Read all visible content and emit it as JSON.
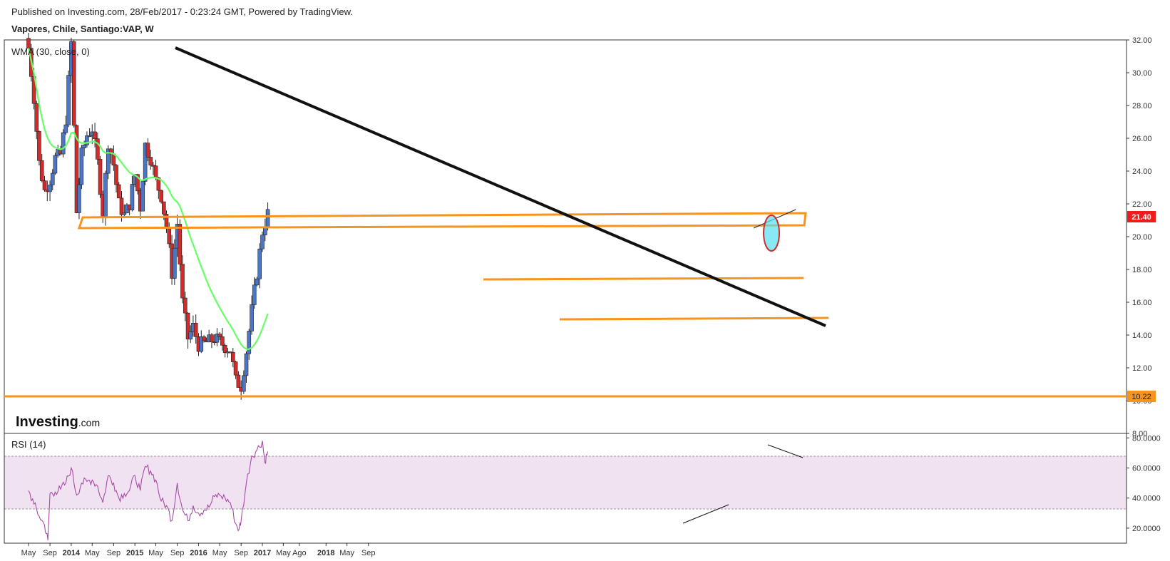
{
  "header": {
    "published": "Published on Investing.com, 28/Feb/2017 - 0:23:24 GMT, Powered by TradingView.",
    "instrument": "Vapores, Chile, Santiago:VAP, W"
  },
  "brand": {
    "logo_main": "Investing",
    "logo_suffix": ".com"
  },
  "colors": {
    "up_candle": "#4a76c8",
    "down_candle": "#d12b2b",
    "wma": "#66ff66",
    "trendline": "#111111",
    "support": "#f7941d",
    "rsi_line": "#a64ca6",
    "rsi_band": "#f1e2f1",
    "price_tag": "#ee1c1c"
  },
  "chart_data": [
    {
      "type": "candlestick",
      "title": "Vapores, Chile, Santiago:VAP, W",
      "indicator": "WMA (30, close, 0)",
      "x_ticks": [
        "May",
        "Sep",
        "2014",
        "May",
        "Sep",
        "2015",
        "May",
        "Sep",
        "2016",
        "May",
        "Sep",
        "2017",
        "May",
        "Ago",
        "2018",
        "May",
        "Sep"
      ],
      "y_ticks": [
        "32.00",
        "30.00",
        "28.00",
        "26.00",
        "24.00",
        "22.00",
        "20.00",
        "18.00",
        "16.00",
        "14.00",
        "12.00",
        "10.00",
        "8.00"
      ],
      "ylim": [
        8,
        32
      ],
      "last_price": "21.40",
      "level_label": "10.22",
      "close_series": [
        {
          "date": "2013-05",
          "close": 31.5
        },
        {
          "date": "2013-06",
          "close": 28.5
        },
        {
          "date": "2013-07",
          "close": 24.5
        },
        {
          "date": "2013-08",
          "close": 22.8
        },
        {
          "date": "2013-09",
          "close": 23.5
        },
        {
          "date": "2013-10",
          "close": 24.8
        },
        {
          "date": "2013-11",
          "close": 25.0
        },
        {
          "date": "2013-12",
          "close": 27.2
        },
        {
          "date": "2014-01",
          "close": 31.8
        },
        {
          "date": "2014-02",
          "close": 21.5
        },
        {
          "date": "2014-03",
          "close": 25.0
        },
        {
          "date": "2014-04",
          "close": 26.2
        },
        {
          "date": "2014-05",
          "close": 26.6
        },
        {
          "date": "2014-06",
          "close": 24.5
        },
        {
          "date": "2014-07",
          "close": 21.5
        },
        {
          "date": "2014-08",
          "close": 25.8
        },
        {
          "date": "2014-09",
          "close": 24.4
        },
        {
          "date": "2014-10",
          "close": 22.0
        },
        {
          "date": "2014-11",
          "close": 21.3
        },
        {
          "date": "2014-12",
          "close": 22.0
        },
        {
          "date": "2015-01",
          "close": 23.8
        },
        {
          "date": "2015-02",
          "close": 21.8
        },
        {
          "date": "2015-03",
          "close": 25.6
        },
        {
          "date": "2015-04",
          "close": 24.8
        },
        {
          "date": "2015-05",
          "close": 23.4
        },
        {
          "date": "2015-06",
          "close": 22.5
        },
        {
          "date": "2015-07",
          "close": 20.6
        },
        {
          "date": "2015-08",
          "close": 17.8
        },
        {
          "date": "2015-09",
          "close": 20.8
        },
        {
          "date": "2015-10",
          "close": 16.0
        },
        {
          "date": "2015-11",
          "close": 13.8
        },
        {
          "date": "2015-12",
          "close": 14.5
        },
        {
          "date": "2016-01",
          "close": 13.4
        },
        {
          "date": "2016-02",
          "close": 13.5
        },
        {
          "date": "2016-03",
          "close": 13.6
        },
        {
          "date": "2016-04",
          "close": 13.8
        },
        {
          "date": "2016-05",
          "close": 13.6
        },
        {
          "date": "2016-06",
          "close": 13.3
        },
        {
          "date": "2016-07",
          "close": 13.1
        },
        {
          "date": "2016-08",
          "close": 11.2
        },
        {
          "date": "2016-09",
          "close": 10.9
        },
        {
          "date": "2016-10",
          "close": 13.0
        },
        {
          "date": "2016-11",
          "close": 15.5
        },
        {
          "date": "2016-12",
          "close": 17.8
        },
        {
          "date": "2017-01",
          "close": 20.3
        },
        {
          "date": "2017-02",
          "close": 21.4
        }
      ]
    },
    {
      "type": "line",
      "title": "RSI (14)",
      "y_ticks": [
        "80.0000",
        "60.0000",
        "40.0000",
        "20.0000"
      ],
      "ylim": [
        10,
        83
      ],
      "bands": [
        30,
        70
      ],
      "rsi_series": [
        {
          "date": "2013-05",
          "rsi": 45
        },
        {
          "date": "2013-06",
          "rsi": 36
        },
        {
          "date": "2013-07",
          "rsi": 28
        },
        {
          "date": "2013-08",
          "rsi": 22
        },
        {
          "date": "2013-08-20",
          "rsi": 12
        },
        {
          "date": "2013-09",
          "rsi": 43
        },
        {
          "date": "2013-10",
          "rsi": 44
        },
        {
          "date": "2013-11",
          "rsi": 46
        },
        {
          "date": "2013-12",
          "rsi": 50
        },
        {
          "date": "2014-01",
          "rsi": 60
        },
        {
          "date": "2014-02",
          "rsi": 42
        },
        {
          "date": "2014-03",
          "rsi": 50
        },
        {
          "date": "2014-04",
          "rsi": 51
        },
        {
          "date": "2014-05",
          "rsi": 52
        },
        {
          "date": "2014-06",
          "rsi": 48
        },
        {
          "date": "2014-07",
          "rsi": 37
        },
        {
          "date": "2014-08",
          "rsi": 55
        },
        {
          "date": "2014-09",
          "rsi": 50
        },
        {
          "date": "2014-10",
          "rsi": 40
        },
        {
          "date": "2014-11",
          "rsi": 43
        },
        {
          "date": "2014-12",
          "rsi": 45
        },
        {
          "date": "2015-01",
          "rsi": 55
        },
        {
          "date": "2015-02",
          "rsi": 45
        },
        {
          "date": "2015-03",
          "rsi": 61
        },
        {
          "date": "2015-04",
          "rsi": 58
        },
        {
          "date": "2015-05",
          "rsi": 52
        },
        {
          "date": "2015-06",
          "rsi": 38
        },
        {
          "date": "2015-07",
          "rsi": 35
        },
        {
          "date": "2015-08",
          "rsi": 25
        },
        {
          "date": "2015-09",
          "rsi": 50
        },
        {
          "date": "2015-10",
          "rsi": 32
        },
        {
          "date": "2015-11",
          "rsi": 25
        },
        {
          "date": "2015-12",
          "rsi": 35
        },
        {
          "date": "2016-01",
          "rsi": 30
        },
        {
          "date": "2016-02",
          "rsi": 32
        },
        {
          "date": "2016-03",
          "rsi": 34
        },
        {
          "date": "2016-04",
          "rsi": 41
        },
        {
          "date": "2016-05",
          "rsi": 42
        },
        {
          "date": "2016-06",
          "rsi": 40
        },
        {
          "date": "2016-07",
          "rsi": 37
        },
        {
          "date": "2016-08",
          "rsi": 23
        },
        {
          "date": "2016-08-20",
          "rsi": 19
        },
        {
          "date": "2016-09",
          "rsi": 25
        },
        {
          "date": "2016-10",
          "rsi": 50
        },
        {
          "date": "2016-11",
          "rsi": 68
        },
        {
          "date": "2016-12",
          "rsi": 72
        },
        {
          "date": "2017-01",
          "rsi": 78
        },
        {
          "date": "2017-01-15",
          "rsi": 64
        },
        {
          "date": "2017-02",
          "rsi": 71
        }
      ]
    }
  ]
}
